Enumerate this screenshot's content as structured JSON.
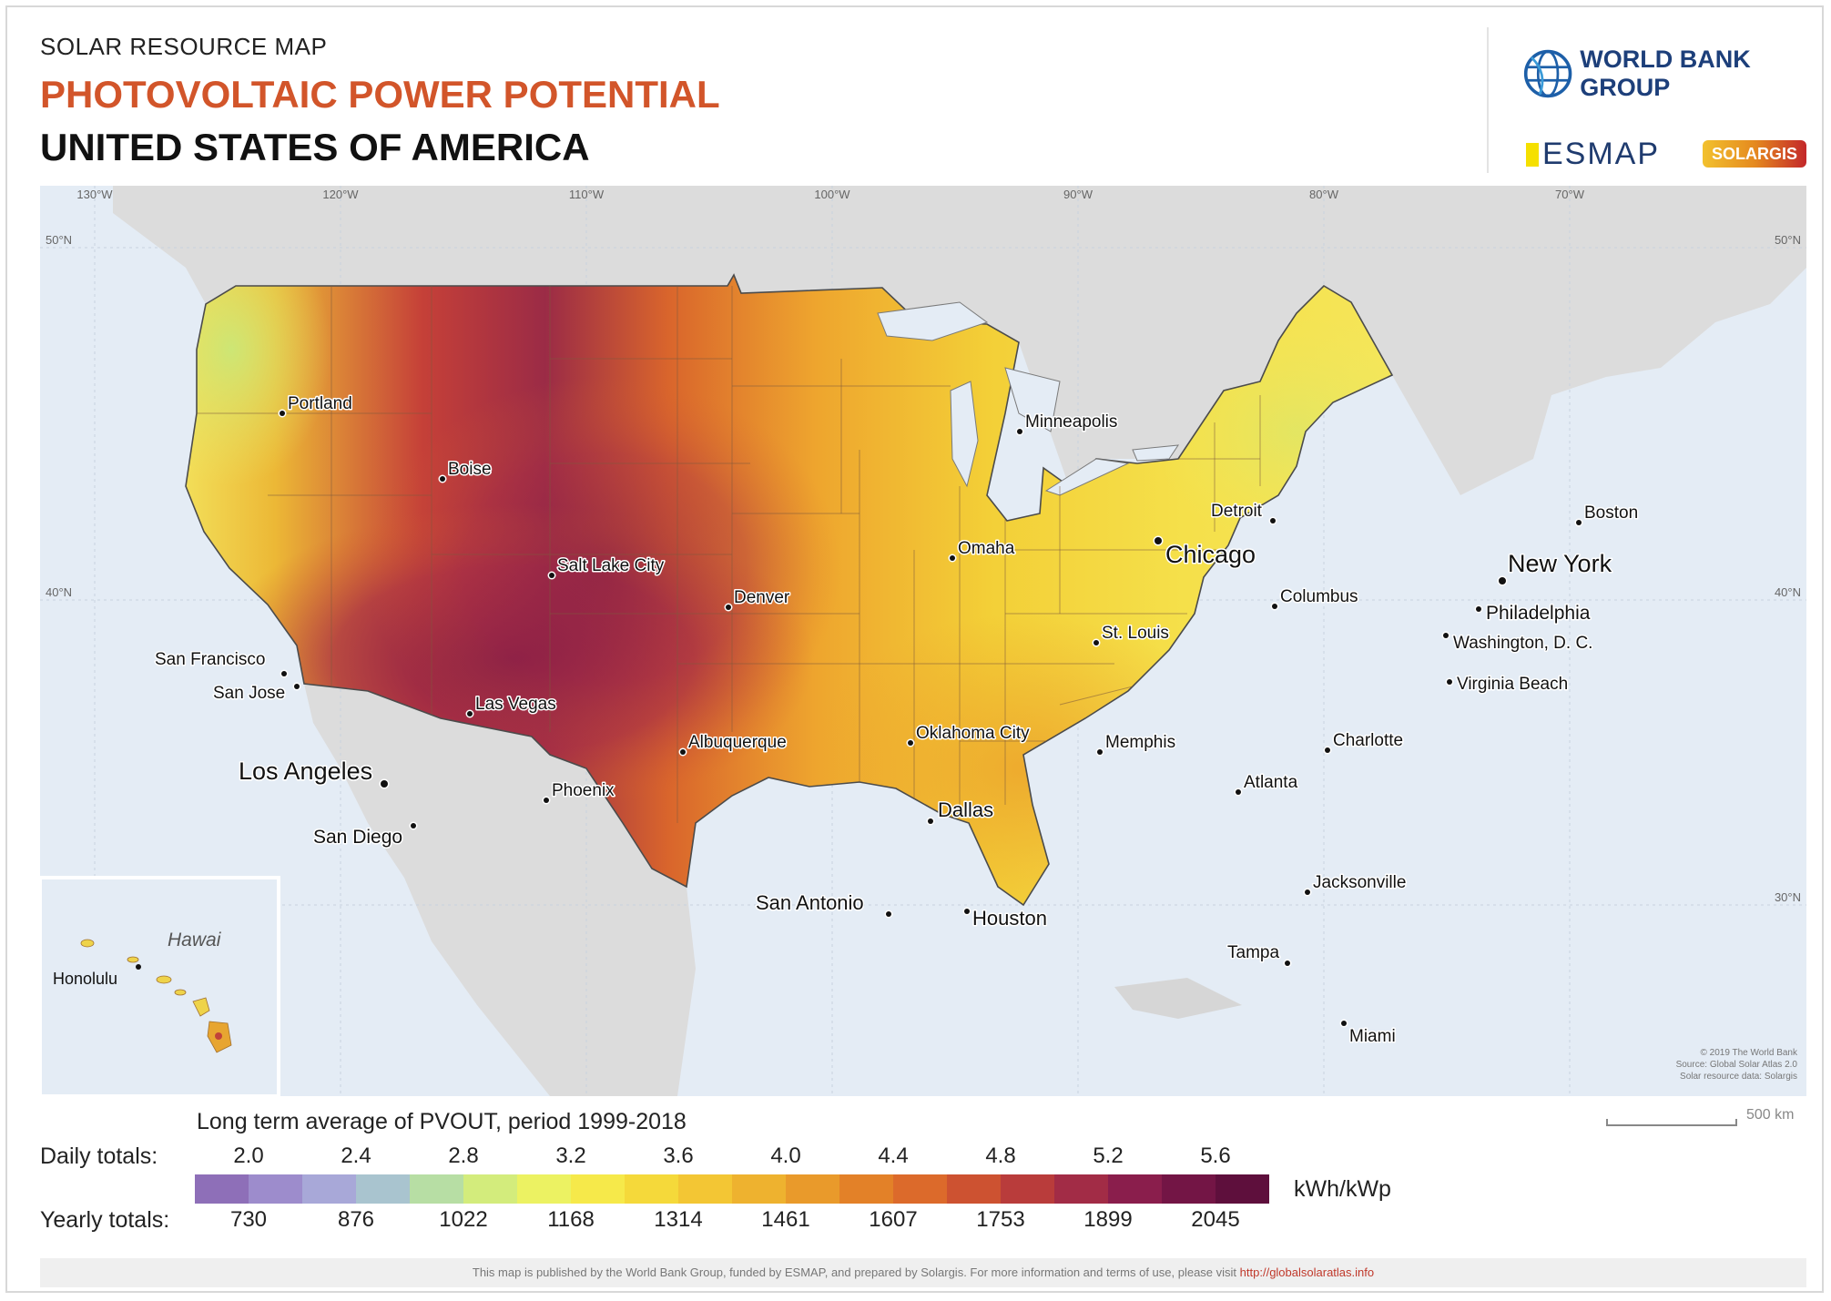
{
  "header": {
    "small_title": "SOLAR RESOURCE MAP",
    "title": "PHOTOVOLTAIC POWER POTENTIAL",
    "country": "UNITED STATES OF AMERICA"
  },
  "logos": {
    "world_bank": "WORLD BANK GROUP",
    "esmap": "ESMAP",
    "solargis": "SOLARGIS"
  },
  "map": {
    "longitude_labels": [
      "130°W",
      "120°W",
      "110°W",
      "100°W",
      "90°W",
      "80°W",
      "70°W"
    ],
    "latitude_labels": [
      "50°N",
      "40°N",
      "30°N"
    ],
    "inset_title": "Hawai",
    "cities": [
      {
        "name": "Portland"
      },
      {
        "name": "Boise"
      },
      {
        "name": "Salt Lake City"
      },
      {
        "name": "Denver"
      },
      {
        "name": "Minneapolis"
      },
      {
        "name": "Omaha"
      },
      {
        "name": "Detroit"
      },
      {
        "name": "Chicago"
      },
      {
        "name": "Boston"
      },
      {
        "name": "New York"
      },
      {
        "name": "Philadelphia"
      },
      {
        "name": "Washington, D. C."
      },
      {
        "name": "Columbus"
      },
      {
        "name": "St. Louis"
      },
      {
        "name": "Virginia Beach"
      },
      {
        "name": "San Francisco"
      },
      {
        "name": "San Jose"
      },
      {
        "name": "Las Vegas"
      },
      {
        "name": "Los Angeles"
      },
      {
        "name": "San Diego"
      },
      {
        "name": "Phoenix"
      },
      {
        "name": "Albuquerque"
      },
      {
        "name": "Oklahoma City"
      },
      {
        "name": "Memphis"
      },
      {
        "name": "Charlotte"
      },
      {
        "name": "Atlanta"
      },
      {
        "name": "Dallas"
      },
      {
        "name": "San Antonio"
      },
      {
        "name": "Houston"
      },
      {
        "name": "Jacksonville"
      },
      {
        "name": "Tampa"
      },
      {
        "name": "Miami"
      },
      {
        "name": "Honolulu"
      }
    ],
    "copyright_lines": [
      "© 2019 The World Bank",
      "Source: Global Solar Atlas 2.0",
      "Solar resource data: Solargis"
    ],
    "scale": "500 km"
  },
  "legend": {
    "caption": "Long term average of PVOUT, period 1999-2018",
    "daily_label": "Daily totals:",
    "yearly_label": "Yearly totals:",
    "daily_ticks": [
      "2.0",
      "2.4",
      "2.8",
      "3.2",
      "3.6",
      "4.0",
      "4.4",
      "4.8",
      "5.2",
      "5.6"
    ],
    "yearly_ticks": [
      "730",
      "876",
      "1022",
      "1168",
      "1314",
      "1461",
      "1607",
      "1753",
      "1899",
      "2045"
    ],
    "unit": "kWh/kWp",
    "colors": [
      "#8e6fb8",
      "#9d8ccc",
      "#a8a8d8",
      "#a9c4cf",
      "#b7dea4",
      "#d3ec7c",
      "#ecf262",
      "#f6e94a",
      "#f5d93a",
      "#f3c634",
      "#eeb22f",
      "#e99a2b",
      "#e38128",
      "#dc6a2b",
      "#cd5231",
      "#b93c3b",
      "#a22c46",
      "#8a1e4c",
      "#731545",
      "#5e0f3c"
    ]
  },
  "footer": {
    "text": "This map is published by the World Bank Group, funded by ESMAP, and prepared by Solargis. For more information and terms of use, please visit",
    "link": "http://globalsolaratlas.info"
  }
}
